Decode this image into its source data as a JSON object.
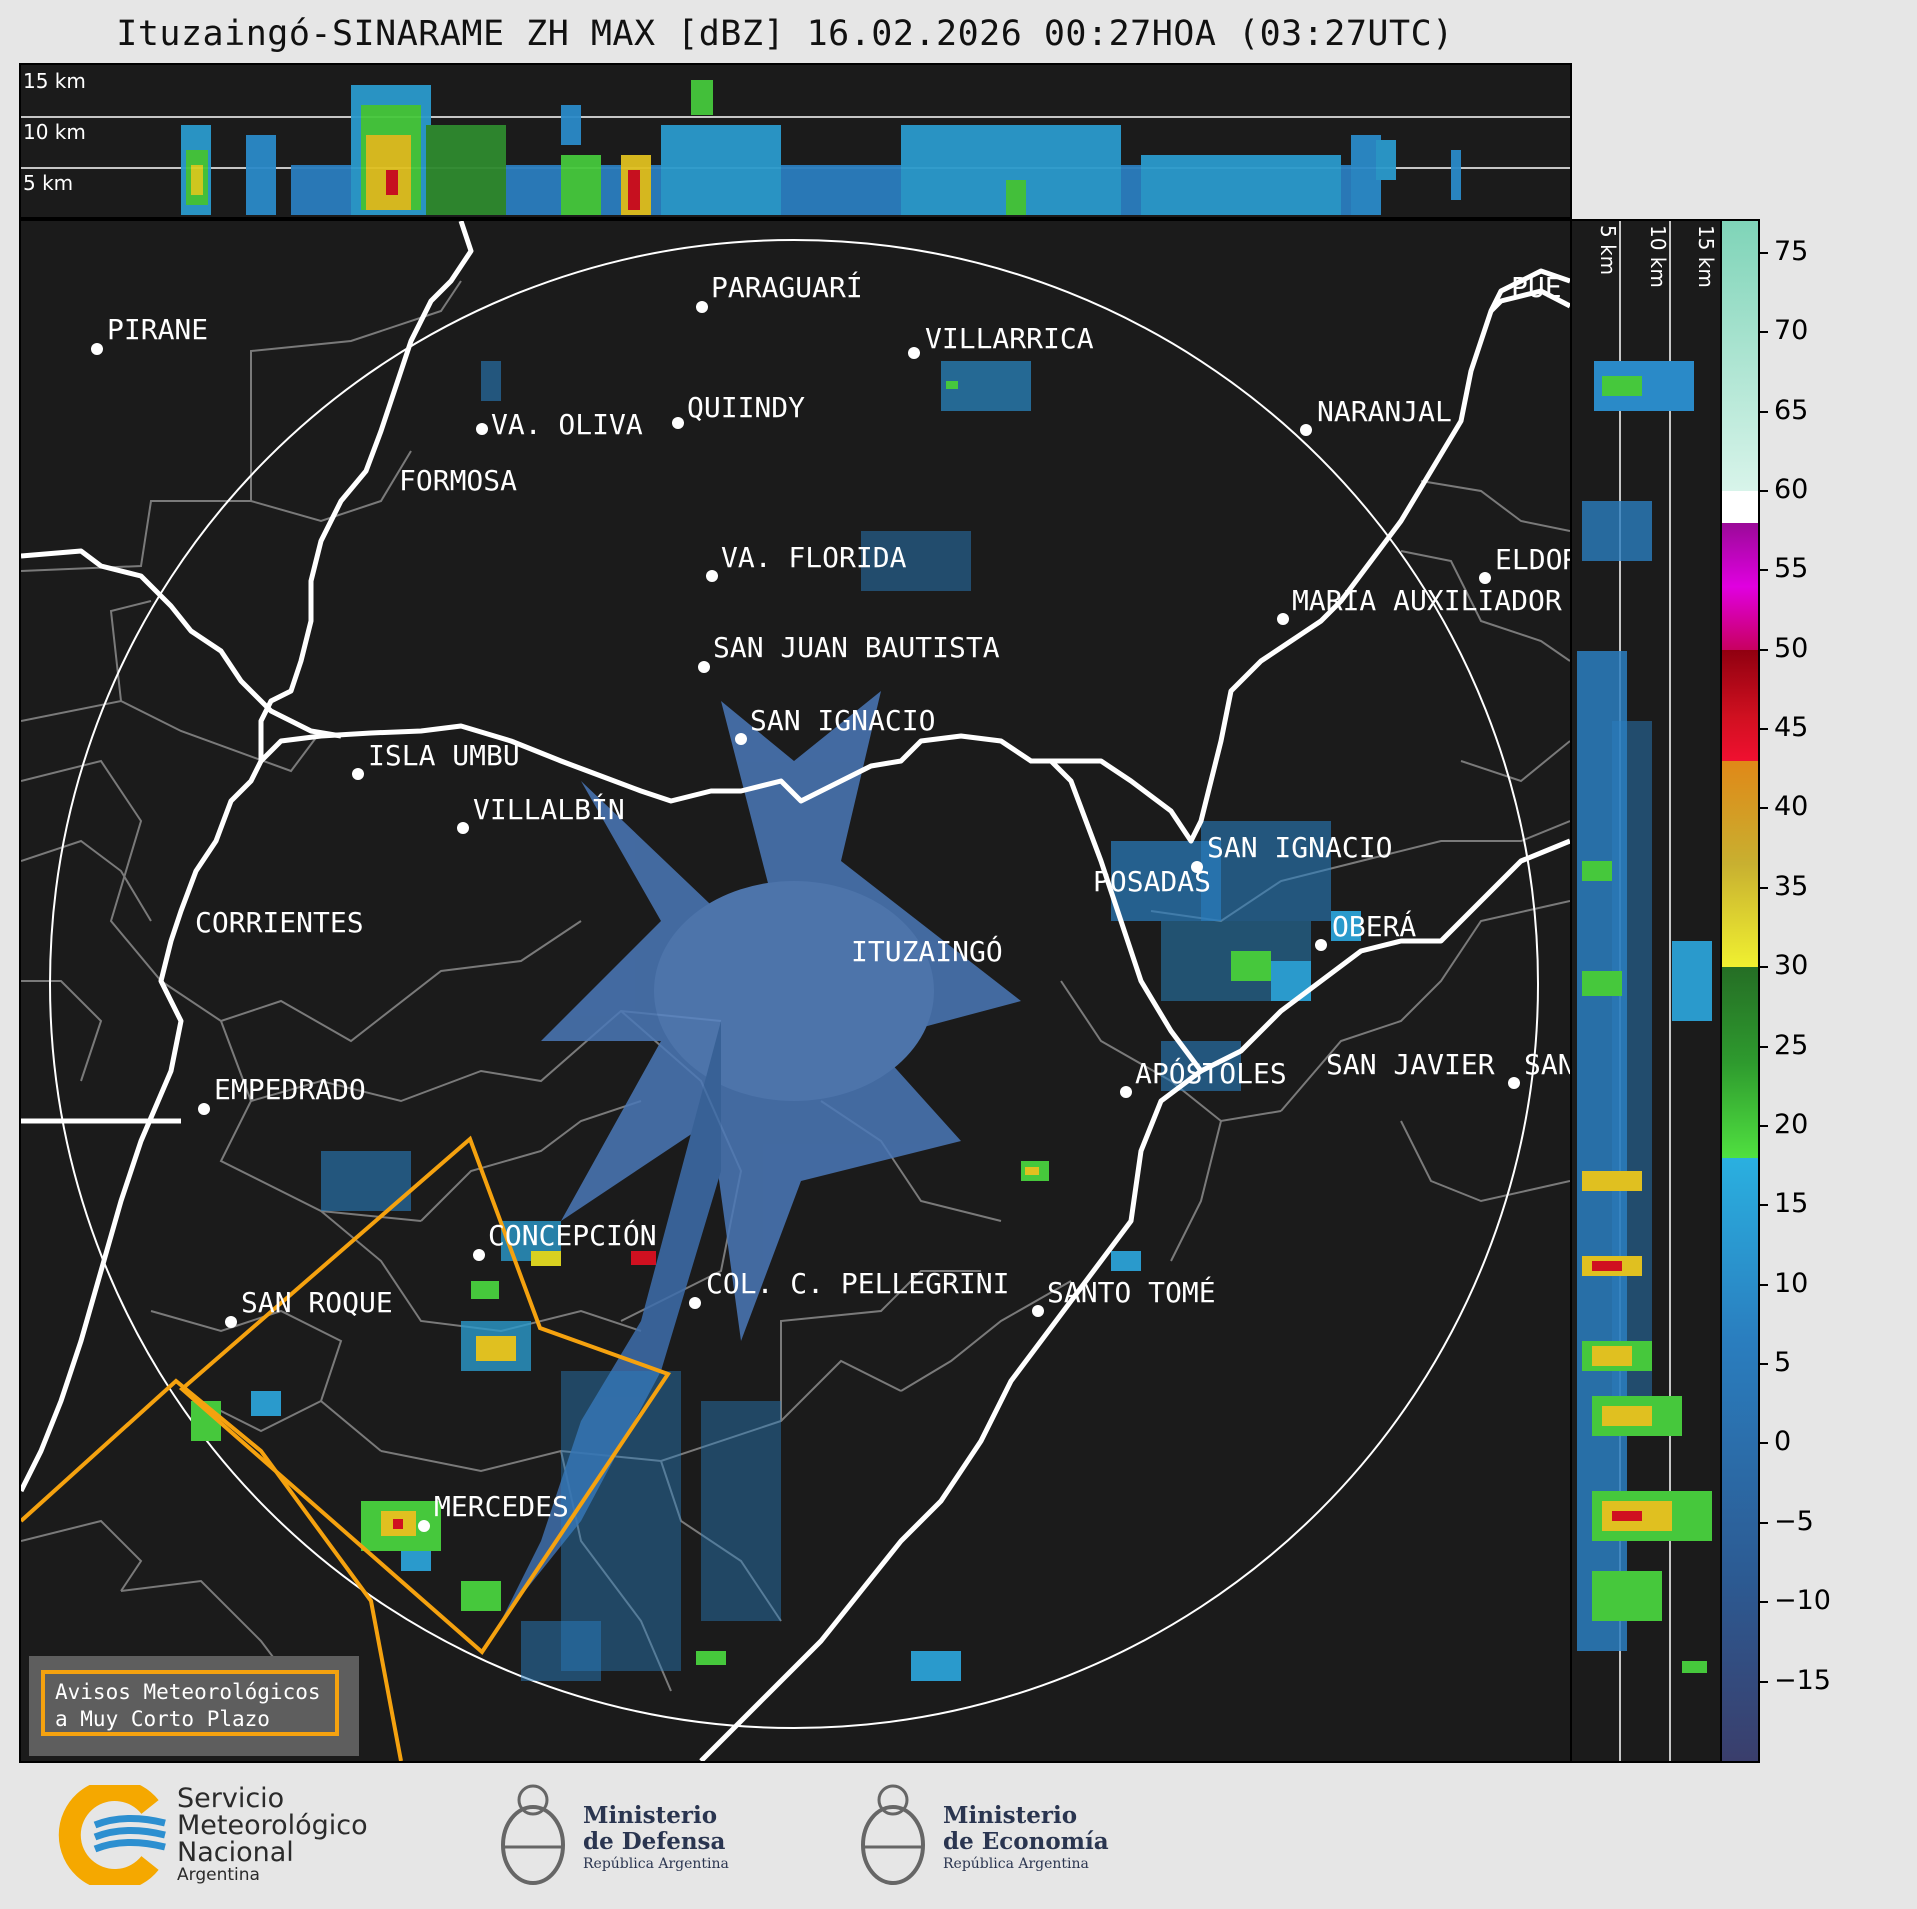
{
  "title": "Ituzaingó-SINARAME ZH MAX [dBZ] 16.02.2026 00:27HOA (03:27UTC)",
  "top_panel": {
    "altitude_labels": [
      "15 km",
      "10 km",
      "5 km"
    ]
  },
  "side_panel": {
    "altitude_labels": [
      "5 km",
      "10 km",
      "15 km"
    ]
  },
  "colorbar": {
    "unit": "dBZ",
    "ticks": [
      "75",
      "70",
      "65",
      "60",
      "55",
      "50",
      "45",
      "40",
      "35",
      "30",
      "25",
      "20",
      "15",
      "10",
      "5",
      "0",
      "−5",
      "−10",
      "−15"
    ],
    "tick_values": [
      75,
      70,
      65,
      60,
      55,
      50,
      45,
      40,
      35,
      30,
      25,
      20,
      15,
      10,
      5,
      0,
      -5,
      -10,
      -15
    ],
    "range": [
      -20,
      77
    ],
    "bands": [
      {
        "from": 60,
        "to": 77,
        "color": "#7fd4b8"
      },
      {
        "from": 58,
        "to": 60,
        "color": "#ffffff"
      },
      {
        "from": 50,
        "to": 58,
        "color": "#d400c8"
      },
      {
        "from": 43,
        "to": 50,
        "color": "#c81020"
      },
      {
        "from": 30,
        "to": 43,
        "color": "#d8b820"
      },
      {
        "from": 18,
        "to": 30,
        "color": "#2e9a2e"
      },
      {
        "from": -20,
        "to": 18,
        "color": "#2a6ea8"
      }
    ]
  },
  "map": {
    "radar_site": "ITUZAINGÓ",
    "cities": [
      {
        "name": "PIRANE"
      },
      {
        "name": "PARAGUARÍ"
      },
      {
        "name": "VILLARRICA"
      },
      {
        "name": "QUIINDY"
      },
      {
        "name": "VA. OLIVA"
      },
      {
        "name": "FORMOSA"
      },
      {
        "name": "NARANJAL"
      },
      {
        "name": "VA. FLORIDA"
      },
      {
        "name": "ELDOR"
      },
      {
        "name": "MARÍA AUXILIADOR"
      },
      {
        "name": "SAN JUAN BAUTISTA"
      },
      {
        "name": "SAN IGNACIO"
      },
      {
        "name": "ISLA UMBÚ"
      },
      {
        "name": "VILLALBÍN"
      },
      {
        "name": "SAN IGNACIO"
      },
      {
        "name": "POSADAS"
      },
      {
        "name": "CORRIENTES"
      },
      {
        "name": "ITUZAINGÓ"
      },
      {
        "name": "OBERÁ"
      },
      {
        "name": "EMPEDRADO"
      },
      {
        "name": "APÓSTOLES"
      },
      {
        "name": "SAN JAVIER"
      },
      {
        "name": "SAN"
      },
      {
        "name": "CONCEPCIÓN"
      },
      {
        "name": "COL. C. PELLEGRINI"
      },
      {
        "name": "SANTO TOMÉ"
      },
      {
        "name": "SAN ROQUE"
      },
      {
        "name": "MERCEDES"
      },
      {
        "name": "PUE"
      }
    ],
    "warning_color": "#f5a20f",
    "river_color": "#ffffff",
    "border_color": "#7a7a7a"
  },
  "legend": {
    "line1": "Avisos Meteorológicos",
    "line2": "a Muy Corto Plazo"
  },
  "footer": {
    "smn": {
      "line1": "Servicio",
      "line2": "Meteorológico",
      "line3": "Nacional",
      "line4": "Argentina"
    },
    "defensa": {
      "line1": "Ministerio",
      "line2": "de Defensa",
      "line3": "República Argentina"
    },
    "economia": {
      "line1": "Ministerio",
      "line2": "de Economía",
      "line3": "República Argentina"
    }
  }
}
